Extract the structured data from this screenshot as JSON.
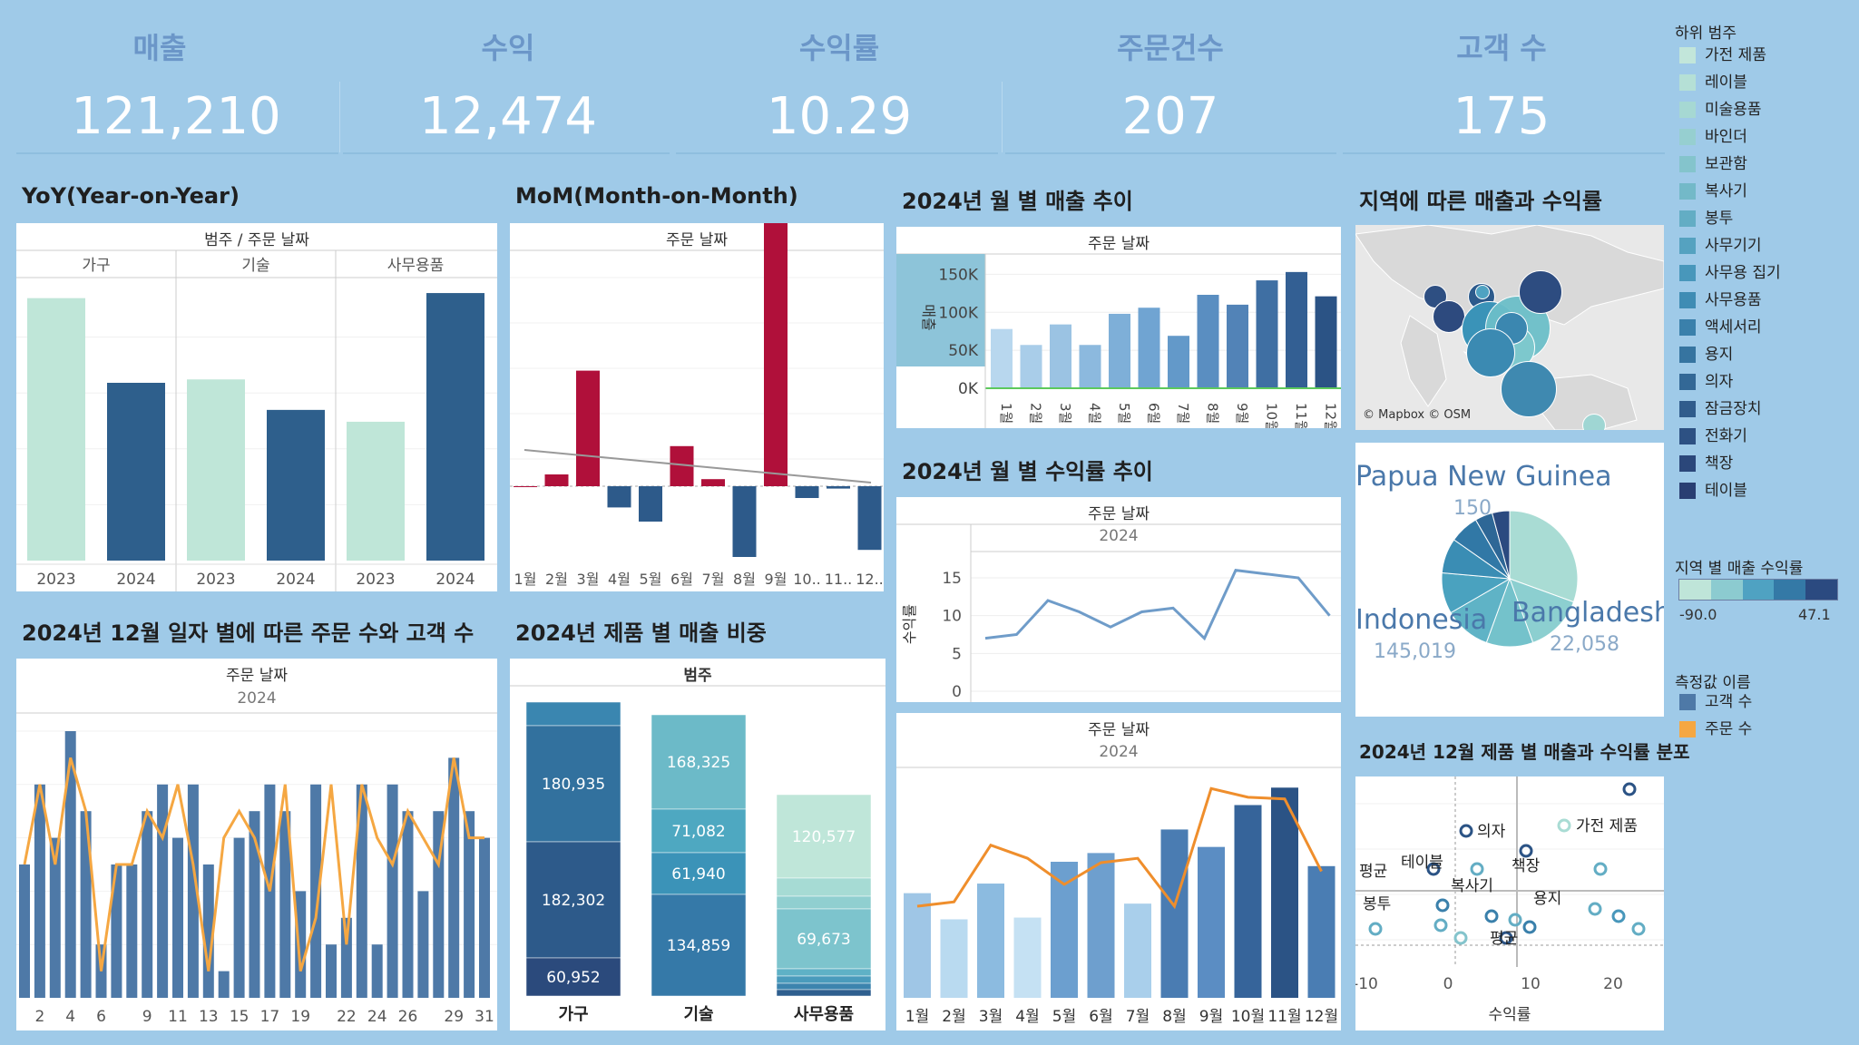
{
  "kpis": [
    {
      "label": "매출",
      "value": "121,210"
    },
    {
      "label": "수익",
      "value": "12,474"
    },
    {
      "label": "수익률",
      "value": "10.29"
    },
    {
      "label": "주문건수",
      "value": "207"
    },
    {
      "label": "고객 수",
      "value": "175"
    }
  ],
  "sections": {
    "yoy": "YoY(Year-on-Year)",
    "mom": "MoM(Month-on-Month)",
    "monthly_sales": "2024년 월 별 매출 추이",
    "region": "지역에 따른 매출과 수익률",
    "monthly_margin": "2024년 월 별 수익률 추이",
    "dec_orders": "2024년 12월 일자 별에 따른 주문 수와 고객 수",
    "product_share": "2024년 제품 별 매출 비중",
    "dec_scatter": "2024년 12월 제품 별 매출과 수익률 분포"
  },
  "legend_subcat": {
    "title": "하위 범주",
    "items": [
      {
        "label": "가전 제품",
        "color": "#c2e6da"
      },
      {
        "label": "레이블",
        "color": "#b5e0d6"
      },
      {
        "label": "미술용품",
        "color": "#a6d8d3"
      },
      {
        "label": "바인더",
        "color": "#96cfd0"
      },
      {
        "label": "보관함",
        "color": "#84c4cc"
      },
      {
        "label": "복사기",
        "color": "#73b9c8"
      },
      {
        "label": "봉투",
        "color": "#63adc4"
      },
      {
        "label": "사무기기",
        "color": "#55a2c0"
      },
      {
        "label": "사무용 집기",
        "color": "#4897bb"
      },
      {
        "label": "사무용품",
        "color": "#3f8cb4"
      },
      {
        "label": "액세서리",
        "color": "#3a80ab"
      },
      {
        "label": "용지",
        "color": "#3674a0"
      },
      {
        "label": "의자",
        "color": "#336896"
      },
      {
        "label": "잠금장치",
        "color": "#305c8c"
      },
      {
        "label": "전화기",
        "color": "#2d5183"
      },
      {
        "label": "책장",
        "color": "#2b477a"
      },
      {
        "label": "테이블",
        "color": "#293e72"
      }
    ]
  },
  "legend_region": {
    "title": "지역 별 매출 수익률",
    "min": "-90.0",
    "max": "47.1"
  },
  "legend_measure": {
    "title": "측정값 이름",
    "items": [
      {
        "label": "고객 수",
        "color": "#4e79a7"
      },
      {
        "label": "주문 수",
        "color": "#f5a742"
      }
    ]
  },
  "yoy": {
    "header": "범주 / 주문 날짜",
    "chart_data": {
      "type": "bar",
      "groups": [
        "가구",
        "기술",
        "사무용품"
      ],
      "categories": [
        "2023",
        "2024"
      ],
      "values": [
        [
          155000,
          105000
        ],
        [
          107000,
          89000
        ],
        [
          82000,
          158000
        ]
      ],
      "ylim": [
        0,
        165000
      ]
    }
  },
  "mom": {
    "header": "주문 날짜",
    "chart_data": {
      "type": "bar",
      "categories": [
        "1월",
        "2월",
        "3월",
        "4월",
        "5월",
        "6월",
        "7월",
        "8월",
        "9월",
        "10..",
        "11..",
        "12.."
      ],
      "values": [
        0,
        5,
        49,
        -9,
        -15,
        17,
        3,
        -30,
        112,
        -5,
        -1,
        -27
      ],
      "ylim": [
        -35,
        120
      ]
    }
  },
  "monthly_sales": {
    "header": "주문 날짜",
    "ylabel": "매출",
    "chart_data": {
      "type": "bar",
      "categories": [
        "1월",
        "2월",
        "3월",
        "4월",
        "5월",
        "6월",
        "7월",
        "8월",
        "9월",
        "10월",
        "11월",
        "12월"
      ],
      "values": [
        78000,
        57000,
        84000,
        57000,
        98000,
        106000,
        69000,
        123000,
        110000,
        142000,
        153000,
        121000
      ],
      "yticks": [
        "150K",
        "100K",
        "50K",
        "0K"
      ],
      "ylim": [
        0,
        160000
      ]
    }
  },
  "monthly_margin": {
    "header": "주문 날짜",
    "sub": "2024",
    "ylabel": "수익률",
    "chart_data": {
      "type": "line",
      "x": [
        "1월",
        "2월",
        "3월",
        "4월",
        "5월",
        "6월",
        "7월",
        "8월",
        "9월",
        "10월",
        "11월",
        "12월"
      ],
      "values": [
        7,
        7.5,
        12,
        10.5,
        8.5,
        10.5,
        11,
        7,
        16,
        15.5,
        15,
        10
      ],
      "yticks": [
        "15",
        "10",
        "5",
        "0"
      ],
      "ylim": [
        0,
        18
      ]
    }
  },
  "monthly_combo": {
    "header": "주문 날짜",
    "sub": "2024",
    "chart_data": {
      "type": "bar",
      "categories": [
        "1월",
        "2월",
        "3월",
        "4월",
        "5월",
        "6월",
        "7월",
        "8월",
        "9월",
        "10월",
        "11월",
        "12월"
      ],
      "bars": [
        120,
        90,
        131,
        92,
        156,
        166,
        108,
        193,
        173,
        221,
        241,
        151
      ],
      "line": [
        105,
        110,
        175,
        160,
        130,
        155,
        160,
        105,
        240,
        230,
        228,
        145
      ],
      "ylim": [
        0,
        260
      ]
    }
  },
  "dec": {
    "header": "주문 날짜",
    "sub": "2024",
    "chart_data": {
      "type": "bar",
      "categories": [
        "1",
        "2",
        "3",
        "4",
        "5",
        "6",
        "7",
        "8",
        "9",
        "10",
        "11",
        "12",
        "13",
        "14",
        "15",
        "16",
        "17",
        "18",
        "19",
        "20",
        "21",
        "22",
        "23",
        "24",
        "25",
        "26",
        "27",
        "28",
        "29",
        "30",
        "31"
      ],
      "xticks": [
        "2",
        "4",
        "6",
        "9",
        "11",
        "13",
        "15",
        "17",
        "19",
        "22",
        "24",
        "26",
        "29",
        "31"
      ],
      "customers": [
        5,
        8,
        6,
        10,
        7,
        2,
        5,
        5,
        7,
        8,
        6,
        8,
        5,
        1,
        6,
        7,
        8,
        7,
        4,
        8,
        2,
        3,
        8,
        2,
        8,
        7,
        4,
        7,
        9,
        7,
        6
      ],
      "orders": [
        5,
        8,
        5,
        9,
        7,
        1,
        5,
        5,
        7,
        6,
        8,
        5,
        1,
        6,
        7,
        6,
        4,
        8,
        1,
        3,
        8,
        2,
        8,
        6,
        5,
        7,
        6,
        5,
        9,
        6,
        6
      ],
      "ylim": [
        0,
        10
      ]
    }
  },
  "product": {
    "header": "범주",
    "chart_data": {
      "type": "bar",
      "categories": [
        "가구",
        "기술",
        "사무용품"
      ],
      "labels": [
        [
          "180,935",
          "182,302",
          "60,952"
        ],
        [
          "168,325",
          "71,082",
          "61,940",
          "134,859"
        ],
        [
          "120,577",
          "69,673"
        ]
      ]
    }
  },
  "region": {
    "attribution": "© Mapbox © OSM",
    "pie_labels": [
      {
        "name": "Papua New Guinea",
        "value": "150"
      },
      {
        "name": "Indonesia",
        "value": "145,019"
      },
      {
        "name": "Bangladesh",
        "value": "22,058"
      }
    ]
  },
  "scatter": {
    "xlabel": "수익률",
    "xticks": [
      "-10",
      "0",
      "10",
      "20"
    ],
    "labels": [
      "의자",
      "가전 제품",
      "테이블",
      "책장",
      "평균",
      "복사기",
      "봉투",
      "용지",
      "평균"
    ]
  }
}
